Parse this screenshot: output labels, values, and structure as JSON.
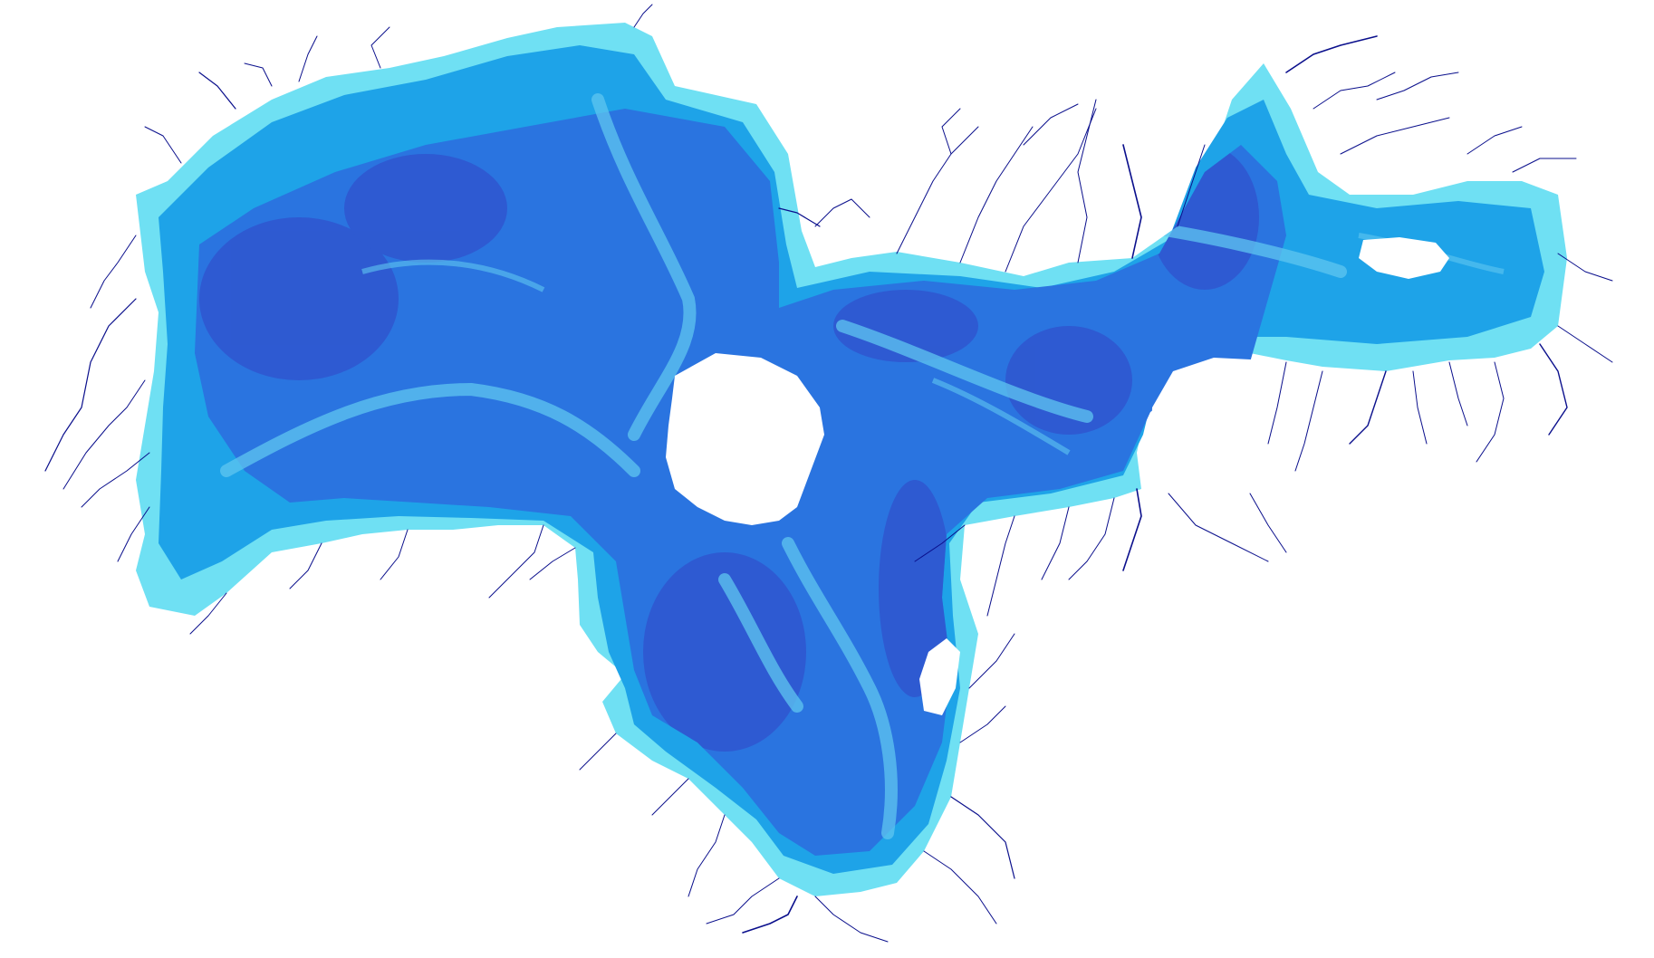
{
  "map": {
    "style": "bathymetric water-depth raster with river network, no labels",
    "colors": {
      "background": "#ffffff",
      "shallow_water": "#6fe0f3",
      "mid_water": "#1ea3e8",
      "deep_water": "#2a74e0",
      "deepest_water": "#2f56cf",
      "channel_highlight": "#5fc6f0",
      "rivers": "#0a0f8c"
    },
    "layers": [
      "water-depth",
      "rivers",
      "islands"
    ]
  }
}
